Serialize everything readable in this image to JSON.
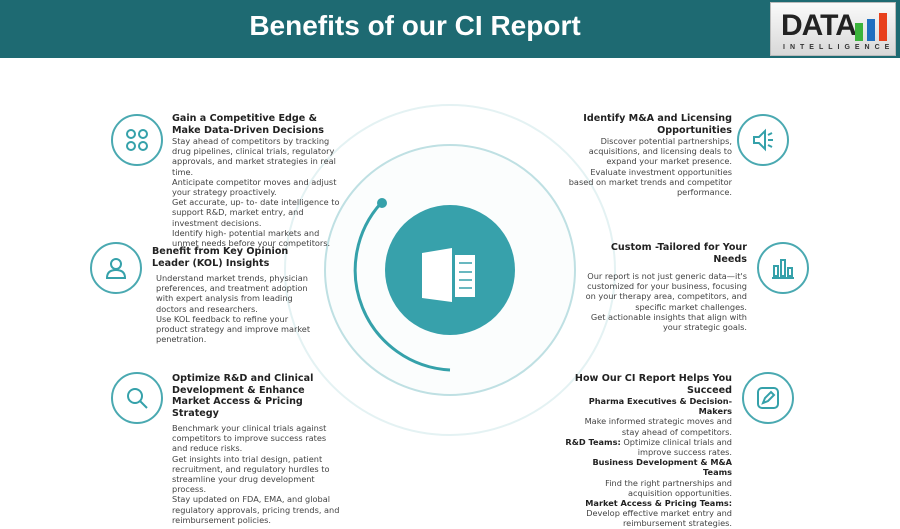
{
  "header": {
    "title": "Benefits of our CI Report",
    "logo_text": "DATA",
    "logo_sub": "INTELLIGENCE"
  },
  "colors": {
    "primary": "#35a1aa",
    "header": "#1e6a72"
  },
  "left": [
    {
      "title": "Gain a Competitive Edge & Make Data-Driven Decisions",
      "icon": "clover-grid-icon",
      "lines": [
        "Stay ahead of competitors by tracking drug pipelines, clinical trials, regulatory approvals, and market strategies in real time.",
        "Anticipate competitor moves and adjust your strategy proactively.",
        "Get accurate, up- to- date intelligence to support R&D, market entry, and investment decisions.",
        "Identify high- potential markets and unmet needs before your competitors."
      ]
    },
    {
      "title": "Benefit from Key Opinion Leader (KOL) Insights",
      "icon": "user-icon",
      "lines": [
        "Understand market trends, physician preferences, and treatment adoption with expert analysis from leading doctors and researchers.",
        "Use KOL feedback to refine your product strategy and improve market penetration."
      ]
    },
    {
      "title": "Optimize R&D and Clinical Development & Enhance Market Access & Pricing Strategy",
      "icon": "search-icon",
      "lines": [
        "Benchmark your clinical trials against competitors to improve success rates and reduce risks.",
        "Get insights into trial design, patient recruitment, and regulatory hurdles to streamline your drug development process.",
        "Stay updated on FDA, EMA, and global regulatory approvals, pricing trends, and reimbursement policies."
      ]
    }
  ],
  "right": [
    {
      "title": "Identify M&A and Licensing Opportunities",
      "icon": "megaphone-icon",
      "lines": [
        "Discover potential partnerships, acquisitions, and licensing deals to expand your market presence.",
        "Evaluate investment opportunities based on market trends and competitor performance."
      ]
    },
    {
      "title": "Custom -Tailored for Your Needs",
      "icon": "bar-chart-icon",
      "lines": [
        "Our report is not just generic data—it's customized for your business, focusing on your therapy area, competitors, and specific market challenges.",
        "Get actionable insights that align with your strategic goals."
      ]
    },
    {
      "title": "How Our CI Report Helps You Succeed",
      "icon": "edit-icon",
      "groups": [
        {
          "label": "Pharma Executives & Decision-Makers",
          "text": "Make informed strategic moves and stay ahead of competitors."
        },
        {
          "label": "R&D Teams:",
          "text": "Optimize clinical trials and improve success rates."
        },
        {
          "label": "Business Development & M&A Teams",
          "text": "Find the right partnerships and acquisition opportunities."
        },
        {
          "label": "Market Access & Pricing Teams:",
          "text": "Develop effective market entry and reimbursement strategies."
        }
      ]
    }
  ],
  "center": {
    "icon": "report-document-icon"
  }
}
